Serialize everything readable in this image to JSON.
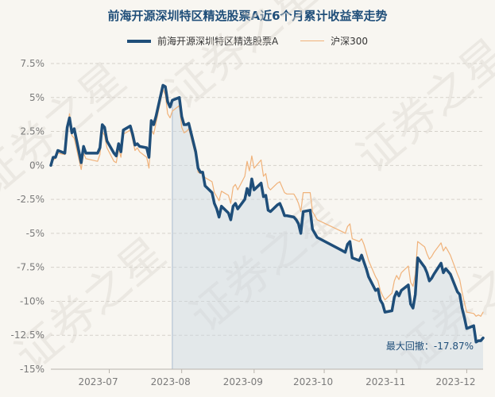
{
  "chart_data": {
    "type": "line",
    "title": "前海开源深圳特区精选股票A近6个月累计收益率走势",
    "xlabel": "",
    "ylabel": "",
    "ylim": [
      -15,
      7.5
    ],
    "y_ticks": [
      7.5,
      5,
      2.5,
      0,
      -2.5,
      -5,
      -7.5,
      -10,
      -12.5,
      -15
    ],
    "y_tick_labels": [
      "7.5%",
      "5%",
      "2.5%",
      "0%",
      "-2.5%",
      "-5%",
      "-7.5%",
      "-10%",
      "-12.5%",
      "-15%"
    ],
    "x_range": [
      "2023-06-06",
      "2023-12-08"
    ],
    "x_ticks": [
      "2023-07-01",
      "2023-08-01",
      "2023-09-01",
      "2023-10-01",
      "2023-11-01",
      "2023-12-01"
    ],
    "x_tick_labels": [
      "2023-07",
      "2023-08",
      "2023-09",
      "2023-10",
      "2023-11",
      "2023-12"
    ],
    "grid": "horizontal dashed",
    "legend": "top-center",
    "max_drawdown_start": "2023-07-28",
    "annotation": "最大回撤：-17.87%",
    "series": [
      {
        "name": "前海开源深圳特区精选股票A",
        "color": "#1f4e79",
        "x": [
          "2023-06-06",
          "2023-06-07",
          "2023-06-08",
          "2023-06-09",
          "2023-06-12",
          "2023-06-13",
          "2023-06-14",
          "2023-06-15",
          "2023-06-16",
          "2023-06-19",
          "2023-06-20",
          "2023-06-21",
          "2023-06-26",
          "2023-06-27",
          "2023-06-28",
          "2023-06-29",
          "2023-06-30",
          "2023-07-03",
          "2023-07-04",
          "2023-07-05",
          "2023-07-06",
          "2023-07-07",
          "2023-07-10",
          "2023-07-11",
          "2023-07-12",
          "2023-07-13",
          "2023-07-14",
          "2023-07-17",
          "2023-07-18",
          "2023-07-19",
          "2023-07-20",
          "2023-07-21",
          "2023-07-24",
          "2023-07-25",
          "2023-07-26",
          "2023-07-27",
          "2023-07-28",
          "2023-07-31",
          "2023-08-01",
          "2023-08-02",
          "2023-08-03",
          "2023-08-04",
          "2023-08-07",
          "2023-08-08",
          "2023-08-09",
          "2023-08-10",
          "2023-08-11",
          "2023-08-14",
          "2023-08-15",
          "2023-08-16",
          "2023-08-17",
          "2023-08-18",
          "2023-08-21",
          "2023-08-22",
          "2023-08-23",
          "2023-08-24",
          "2023-08-25",
          "2023-08-28",
          "2023-08-29",
          "2023-08-30",
          "2023-08-31",
          "2023-09-01",
          "2023-09-04",
          "2023-09-05",
          "2023-09-06",
          "2023-09-07",
          "2023-09-08",
          "2023-09-11",
          "2023-09-12",
          "2023-09-13",
          "2023-09-14",
          "2023-09-15",
          "2023-09-18",
          "2023-09-19",
          "2023-09-20",
          "2023-09-21",
          "2023-09-22",
          "2023-09-25",
          "2023-09-26",
          "2023-09-27",
          "2023-09-28",
          "2023-10-09",
          "2023-10-10",
          "2023-10-11",
          "2023-10-12",
          "2023-10-13",
          "2023-10-16",
          "2023-10-17",
          "2023-10-18",
          "2023-10-19",
          "2023-10-20",
          "2023-10-23",
          "2023-10-24",
          "2023-10-25",
          "2023-10-26",
          "2023-10-27",
          "2023-10-30",
          "2023-10-31",
          "2023-11-01",
          "2023-11-02",
          "2023-11-03",
          "2023-11-06",
          "2023-11-07",
          "2023-11-08",
          "2023-11-09",
          "2023-11-10",
          "2023-11-13",
          "2023-11-14",
          "2023-11-15",
          "2023-11-16",
          "2023-11-17",
          "2023-11-20",
          "2023-11-21",
          "2023-11-22",
          "2023-11-23",
          "2023-11-24",
          "2023-11-27",
          "2023-11-28",
          "2023-11-29",
          "2023-11-30",
          "2023-12-01",
          "2023-12-04",
          "2023-12-05",
          "2023-12-06",
          "2023-12-07",
          "2023-12-08"
        ],
        "values": [
          0.0,
          0.6,
          0.6,
          1.1,
          0.9,
          2.8,
          3.5,
          2.4,
          2.7,
          0.2,
          1.4,
          0.9,
          0.9,
          1.3,
          3.0,
          2.8,
          1.8,
          0.9,
          0.7,
          1.6,
          1.0,
          2.6,
          2.9,
          2.3,
          1.5,
          1.6,
          1.4,
          1.3,
          0.6,
          3.3,
          3.0,
          3.6,
          5.9,
          5.8,
          4.7,
          4.3,
          4.8,
          5.0,
          3.6,
          3.0,
          3.0,
          3.1,
          1.0,
          -0.2,
          -0.5,
          -0.5,
          -1.5,
          -2.0,
          -2.8,
          -3.2,
          -3.8,
          -3.0,
          -3.5,
          -4.0,
          -3.0,
          -2.8,
          -3.2,
          -2.5,
          -1.7,
          -2.2,
          -1.0,
          -1.8,
          -1.3,
          -2.3,
          -2.2,
          -3.3,
          -3.4,
          -2.9,
          -2.8,
          -3.2,
          -3.7,
          -3.7,
          -3.8,
          -4.0,
          -4.3,
          -5.0,
          -3.4,
          -3.3,
          -4.7,
          -5.0,
          -5.3,
          -6.3,
          -6.4,
          -5.8,
          -5.6,
          -6.8,
          -7.0,
          -6.6,
          -7.1,
          -7.6,
          -8.2,
          -9.2,
          -9.1,
          -9.9,
          -10.2,
          -10.8,
          -10.7,
          -9.7,
          -9.3,
          -9.6,
          -9.2,
          -8.8,
          -10.2,
          -10.5,
          -9.5,
          -6.8,
          -7.5,
          -7.9,
          -8.5,
          -8.3,
          -8.0,
          -7.2,
          -7.9,
          -7.6,
          -7.8,
          -8.0,
          -9.3,
          -9.5,
          -10.5,
          -11.2,
          -12.0,
          -11.8,
          -13.0,
          -12.9,
          -12.9,
          -12.7
        ]
      },
      {
        "name": "沪深300",
        "color": "#f0b27a",
        "x": [
          "2023-06-06",
          "2023-06-07",
          "2023-06-08",
          "2023-06-09",
          "2023-06-12",
          "2023-06-13",
          "2023-06-14",
          "2023-06-15",
          "2023-06-16",
          "2023-06-19",
          "2023-06-20",
          "2023-06-21",
          "2023-06-26",
          "2023-06-27",
          "2023-06-28",
          "2023-06-29",
          "2023-06-30",
          "2023-07-03",
          "2023-07-04",
          "2023-07-05",
          "2023-07-06",
          "2023-07-07",
          "2023-07-10",
          "2023-07-11",
          "2023-07-12",
          "2023-07-13",
          "2023-07-14",
          "2023-07-17",
          "2023-07-18",
          "2023-07-19",
          "2023-07-20",
          "2023-07-21",
          "2023-07-24",
          "2023-07-25",
          "2023-07-26",
          "2023-07-27",
          "2023-07-28",
          "2023-07-31",
          "2023-08-01",
          "2023-08-02",
          "2023-08-03",
          "2023-08-04",
          "2023-08-07",
          "2023-08-08",
          "2023-08-09",
          "2023-08-10",
          "2023-08-11",
          "2023-08-14",
          "2023-08-15",
          "2023-08-16",
          "2023-08-17",
          "2023-08-18",
          "2023-08-21",
          "2023-08-22",
          "2023-08-23",
          "2023-08-24",
          "2023-08-25",
          "2023-08-28",
          "2023-08-29",
          "2023-08-30",
          "2023-08-31",
          "2023-09-01",
          "2023-09-04",
          "2023-09-05",
          "2023-09-06",
          "2023-09-07",
          "2023-09-08",
          "2023-09-11",
          "2023-09-12",
          "2023-09-13",
          "2023-09-14",
          "2023-09-15",
          "2023-09-18",
          "2023-09-19",
          "2023-09-20",
          "2023-09-21",
          "2023-09-22",
          "2023-09-25",
          "2023-09-26",
          "2023-09-27",
          "2023-09-28",
          "2023-10-09",
          "2023-10-10",
          "2023-10-11",
          "2023-10-12",
          "2023-10-13",
          "2023-10-16",
          "2023-10-17",
          "2023-10-18",
          "2023-10-19",
          "2023-10-20",
          "2023-10-23",
          "2023-10-24",
          "2023-10-25",
          "2023-10-26",
          "2023-10-27",
          "2023-10-30",
          "2023-10-31",
          "2023-11-01",
          "2023-11-02",
          "2023-11-03",
          "2023-11-06",
          "2023-11-07",
          "2023-11-08",
          "2023-11-09",
          "2023-11-10",
          "2023-11-13",
          "2023-11-14",
          "2023-11-15",
          "2023-11-16",
          "2023-11-17",
          "2023-11-20",
          "2023-11-21",
          "2023-11-22",
          "2023-11-23",
          "2023-11-24",
          "2023-11-27",
          "2023-11-28",
          "2023-11-29",
          "2023-11-30",
          "2023-12-01",
          "2023-12-04",
          "2023-12-05",
          "2023-12-06",
          "2023-12-07",
          "2023-12-08"
        ],
        "values": [
          0.0,
          0.4,
          0.5,
          0.9,
          0.8,
          2.3,
          3.8,
          2.2,
          2.0,
          -0.3,
          0.9,
          0.5,
          0.3,
          0.8,
          2.5,
          2.2,
          1.3,
          0.3,
          0.2,
          1.2,
          0.6,
          2.3,
          2.6,
          1.9,
          1.1,
          1.3,
          1.0,
          0.6,
          -0.2,
          2.6,
          2.3,
          3.1,
          5.6,
          5.2,
          3.8,
          3.5,
          4.0,
          4.4,
          2.8,
          2.4,
          2.5,
          2.7,
          0.7,
          -0.5,
          -0.6,
          -0.6,
          -0.9,
          -1.2,
          -2.0,
          -2.3,
          -2.6,
          -1.9,
          -2.2,
          -2.8,
          -1.6,
          -1.4,
          -1.8,
          -0.8,
          0.3,
          -0.4,
          0.7,
          -0.2,
          0.4,
          -0.8,
          -0.6,
          -1.6,
          -1.8,
          -1.3,
          -1.2,
          -1.6,
          -2.0,
          -2.1,
          -2.1,
          -2.4,
          -2.8,
          -3.4,
          -2.0,
          -2.0,
          -3.4,
          -3.7,
          -4.0,
          -4.9,
          -5.0,
          -4.5,
          -4.3,
          -5.4,
          -5.6,
          -5.4,
          -5.8,
          -6.4,
          -7.0,
          -8.2,
          -8.5,
          -9.2,
          -9.6,
          -9.9,
          -9.4,
          -8.5,
          -8.1,
          -8.4,
          -7.9,
          -7.4,
          -8.6,
          -8.9,
          -8.0,
          -5.6,
          -6.0,
          -6.5,
          -6.9,
          -6.7,
          -6.4,
          -5.7,
          -6.3,
          -6.0,
          -6.3,
          -6.6,
          -8.0,
          -8.4,
          -9.3,
          -10.1,
          -10.8,
          -10.9,
          -11.1,
          -11.0,
          -11.1,
          -10.8
        ]
      }
    ]
  },
  "watermark": "证券之星"
}
